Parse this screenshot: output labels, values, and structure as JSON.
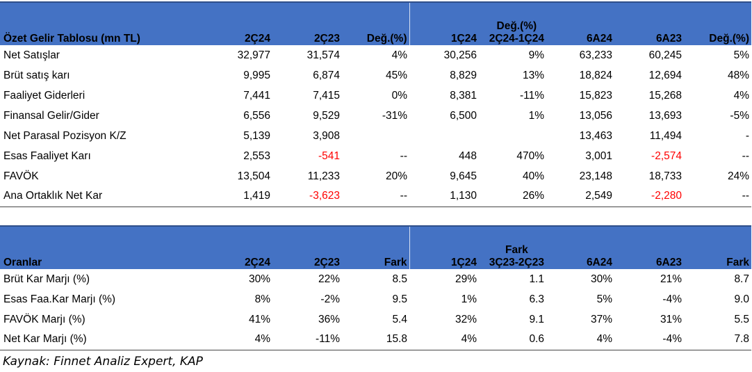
{
  "income": {
    "headers": [
      "Özet Gelir Tablosu (mn TL)",
      "2Ç24",
      "2Ç23",
      "Değ.(%)",
      "1Ç24",
      [
        "Değ.(%)",
        "2Ç24-1Ç24"
      ],
      "6A24",
      "6A23",
      "Değ.(%)"
    ],
    "rows": [
      [
        "Net Satışlar",
        "32,977",
        "31,574",
        "4%",
        "30,256",
        "9%",
        "63,233",
        "60,245",
        "5%"
      ],
      [
        "Brüt satış karı",
        "9,995",
        "6,874",
        "45%",
        "8,829",
        "13%",
        "18,824",
        "12,694",
        "48%"
      ],
      [
        "Faaliyet Giderleri",
        "7,441",
        "7,415",
        "0%",
        "8,381",
        "-11%",
        "15,823",
        "15,268",
        "4%"
      ],
      [
        "Finansal Gelir/Gider",
        "6,556",
        "9,529",
        "-31%",
        "6,500",
        "1%",
        "13,056",
        "13,693",
        "-5%"
      ],
      [
        "Net Parasal Pozisyon K/Z",
        "5,139",
        "3,908",
        "",
        "",
        "",
        "13,463",
        "11,494",
        "-"
      ],
      [
        "Esas Faaliyet Karı",
        "2,553",
        "-541",
        "--",
        "448",
        "470%",
        "3,001",
        "-2,574",
        "--"
      ],
      [
        "FAVÖK",
        "13,504",
        "11,233",
        "20%",
        "9,645",
        "40%",
        "23,148",
        "18,733",
        "24%"
      ],
      [
        "Ana Ortaklık Net Kar",
        "1,419",
        "-3,623",
        "--",
        "1,130",
        "26%",
        "2,549",
        "-2,280",
        "--"
      ]
    ]
  },
  "ratios": {
    "headers": [
      "Oranlar",
      "2Ç24",
      "2Ç23",
      "Fark",
      "1Ç24",
      [
        "Fark",
        "3Ç23-2Ç23"
      ],
      "6A24",
      "6A23",
      "Fark"
    ],
    "rows": [
      [
        "Brüt Kar Marjı (%)",
        "30%",
        "22%",
        "8.5",
        "29%",
        "1.1",
        "30%",
        "21%",
        "8.7"
      ],
      [
        "Esas Faa.Kar Marjı (%)",
        "8%",
        "-2%",
        "9.5",
        "1%",
        "6.3",
        "5%",
        "-4%",
        "9.0"
      ],
      [
        "FAVÖK Marjı (%)",
        "41%",
        "36%",
        "5.4",
        "32%",
        "9.1",
        "37%",
        "31%",
        "5.5"
      ],
      [
        "Net Kar Marjı (%)",
        "4%",
        "-11%",
        "15.8",
        "4%",
        "0.6",
        "4%",
        "-4%",
        "7.8"
      ]
    ]
  },
  "source": "Kaynak: Finnet Analiz Expert, KAP",
  "colors": {
    "header_bg": "#4472c4",
    "negative": "#ff0000"
  }
}
